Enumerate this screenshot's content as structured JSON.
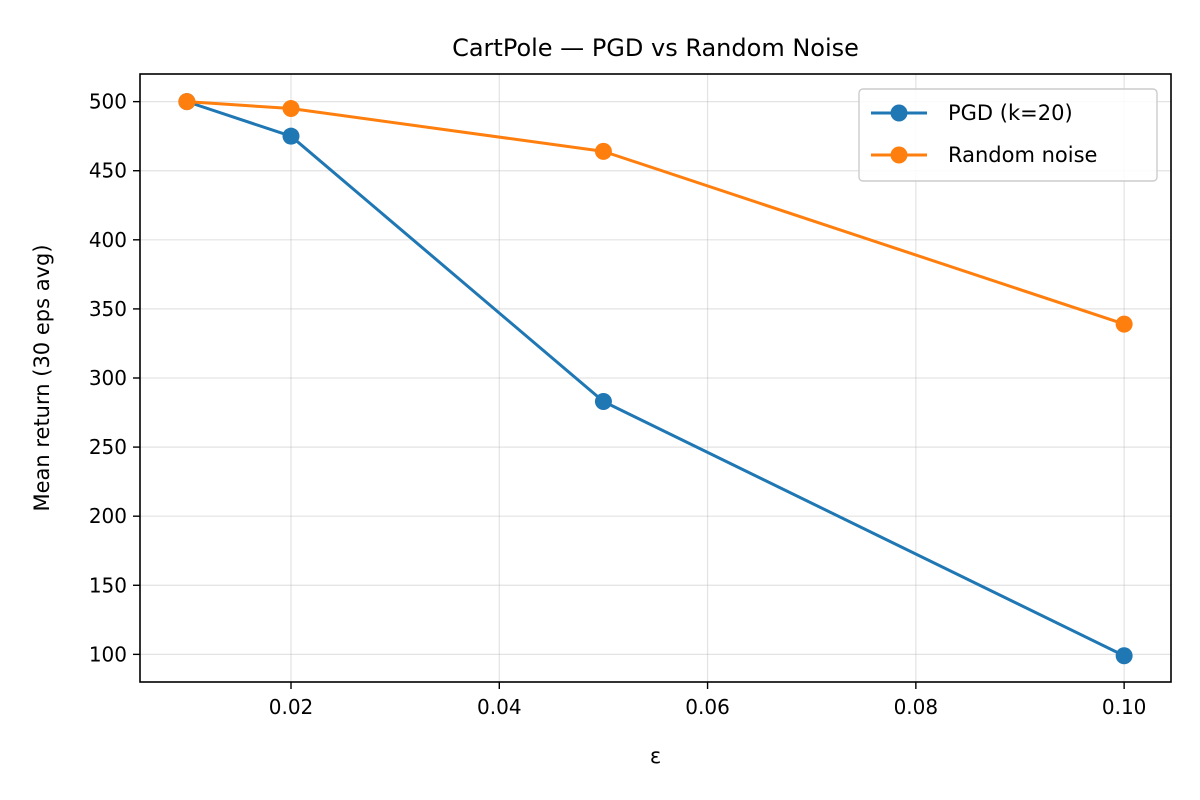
{
  "chart_data": {
    "type": "line",
    "title": "CartPole — PGD vs Random Noise",
    "xlabel": "ε",
    "ylabel": "Mean return (30 eps avg)",
    "xlim": [
      0.0055,
      0.1045
    ],
    "ylim": [
      80,
      520
    ],
    "xticks": [
      0.02,
      0.04,
      0.06,
      0.08,
      0.1
    ],
    "xtick_labels": [
      "0.02",
      "0.04",
      "0.06",
      "0.08",
      "0.10"
    ],
    "yticks": [
      100,
      150,
      200,
      250,
      300,
      350,
      400,
      450,
      500
    ],
    "ytick_labels": [
      "100",
      "150",
      "200",
      "250",
      "300",
      "350",
      "400",
      "450",
      "500"
    ],
    "grid": true,
    "legend_position": "top-right",
    "x": [
      0.01,
      0.02,
      0.05,
      0.1
    ],
    "series": [
      {
        "name": "PGD (k=20)",
        "color": "#1f77b4",
        "values": [
          500,
          475,
          283,
          99
        ]
      },
      {
        "name": "Random noise",
        "color": "#ff7f0e",
        "values": [
          500,
          495,
          464,
          339
        ]
      }
    ]
  }
}
